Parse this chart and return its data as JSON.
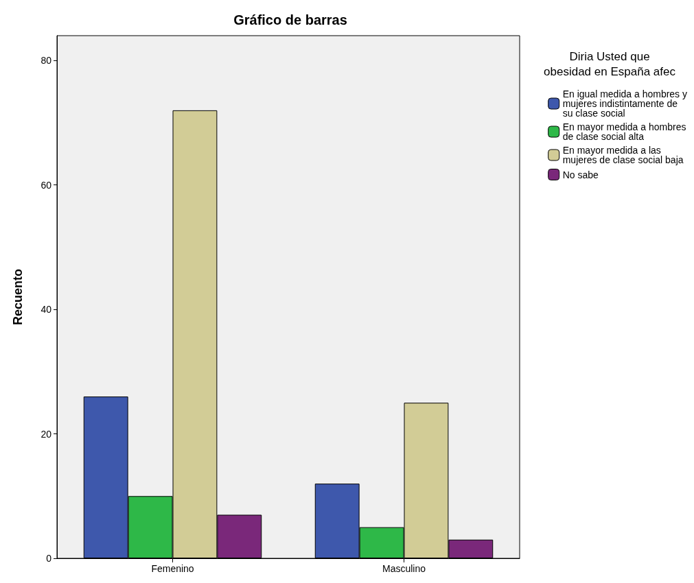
{
  "chart_data": {
    "type": "bar",
    "title": "Gráfico de barras",
    "ylabel": "Recuento",
    "legend_title": "Diria Usted que\nobesidad en España afec",
    "categories": [
      "Femenino",
      "Masculino"
    ],
    "series": [
      {
        "name": "En igual medida a hombres y\nmujeres indistintamente de\nsu clase social",
        "color": "#3e58ac",
        "values": [
          26,
          12
        ]
      },
      {
        "name": "En mayor medida a hombres\nde clase social alta",
        "color": "#2eb848",
        "values": [
          10,
          5
        ]
      },
      {
        "name": "En mayor medida a las\nmujeres de clase social baja",
        "color": "#d2cc96",
        "values": [
          72,
          25
        ]
      },
      {
        "name": "No sabe",
        "color": "#7a287a",
        "values": [
          7,
          3
        ]
      }
    ],
    "ylim": [
      0,
      84
    ],
    "yticks": [
      0,
      20,
      40,
      60,
      80
    ],
    "grid": false,
    "legend": "right"
  }
}
